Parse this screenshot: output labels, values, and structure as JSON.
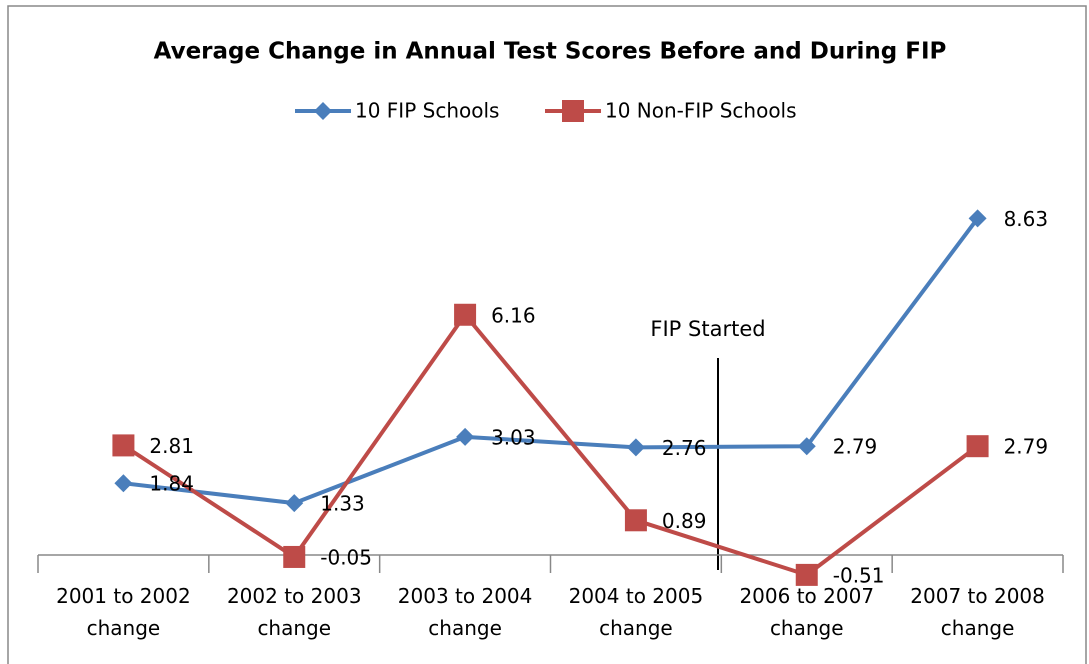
{
  "chart_data": {
    "type": "line",
    "title": "Average Change in Annual Test Scores Before and During FIP",
    "categories": [
      "2001 to 2002 change",
      "2002 to 2003 change",
      "2003 to 2004 change",
      "2004 to 2005 change",
      "2006 to 2007 change",
      "2007 to 2008 change"
    ],
    "series": [
      {
        "name": "10 FIP Schools",
        "color": "#4a7ebb",
        "marker": "diamond",
        "values": [
          1.84,
          1.33,
          3.03,
          2.76,
          2.79,
          8.63
        ]
      },
      {
        "name": "10 Non-FIP Schools",
        "color": "#be4b48",
        "marker": "square",
        "values": [
          2.81,
          -0.05,
          6.16,
          0.89,
          -0.51,
          2.79
        ]
      }
    ],
    "ylim": [
      -1,
      10
    ],
    "legend": "top",
    "annotation": "FIP Started"
  }
}
